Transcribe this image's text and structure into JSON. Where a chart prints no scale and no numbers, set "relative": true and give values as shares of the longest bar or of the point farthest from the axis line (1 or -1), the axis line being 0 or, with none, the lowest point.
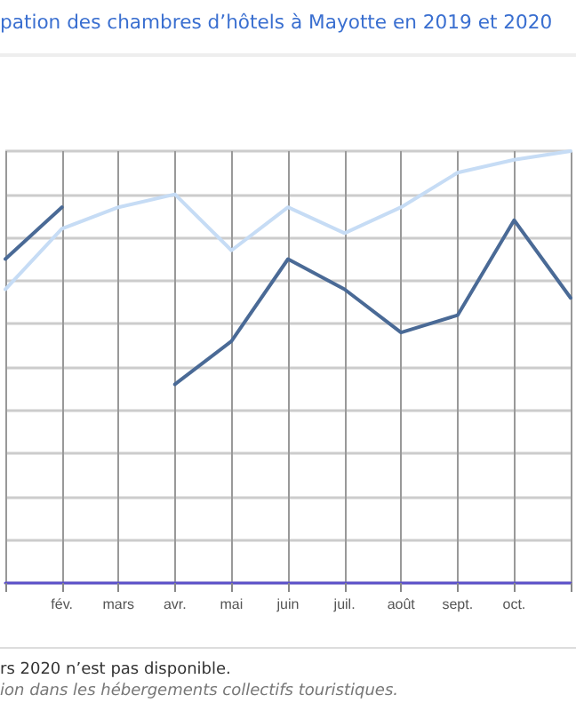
{
  "chart_data": {
    "type": "line",
    "title": "pation des chambres d’hôtels à Mayotte en 2019 et 2020",
    "categories": [
      null,
      "fév.",
      "mars",
      "avr.",
      "mai",
      "juin",
      "juil.",
      "août",
      "sept.",
      "oct.",
      null
    ],
    "relative": true,
    "grid": true,
    "marker": "none",
    "line_style": "solid",
    "series": [
      {
        "color": "#c6dcf5",
        "values": [
          0.68,
          0.82,
          0.87,
          0.9,
          0.77,
          0.87,
          0.81,
          0.87,
          0.95,
          0.98,
          1
        ]
      },
      {
        "color": "#4a6a96",
        "values": [
          0.75,
          0.87,
          null,
          0.46,
          0.56,
          0.75,
          0.68,
          0.58,
          0.62,
          0.84,
          0.66
        ]
      }
    ],
    "annotations": [
      "rs 2020 n’est pas disponible.",
      "ion dans les hébergements collectifs touristiques."
    ]
  }
}
